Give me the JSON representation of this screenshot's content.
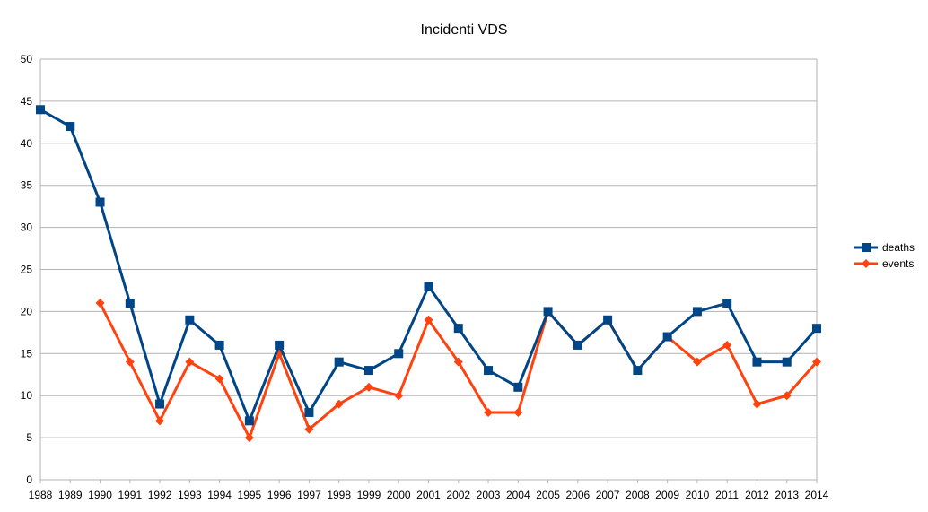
{
  "chart_data": {
    "type": "line",
    "title": "Incidenti VDS",
    "x": [
      "1988",
      "1989",
      "1990",
      "1991",
      "1992",
      "1993",
      "1994",
      "1995",
      "1996",
      "1997",
      "1998",
      "1999",
      "2000",
      "2001",
      "2002",
      "2003",
      "2004",
      "2005",
      "2006",
      "2007",
      "2008",
      "2009",
      "2010",
      "2011",
      "2012",
      "2013",
      "2014"
    ],
    "ylim": [
      0,
      50
    ],
    "yticks": [
      0,
      5,
      10,
      15,
      20,
      25,
      30,
      35,
      40,
      45,
      50
    ],
    "grid": true,
    "legend_position": "right",
    "series": [
      {
        "name": "deaths",
        "color": "#004586",
        "marker": "square",
        "values": [
          44,
          42,
          33,
          21,
          9,
          19,
          16,
          7,
          16,
          8,
          14,
          13,
          15,
          23,
          18,
          13,
          11,
          20,
          16,
          19,
          13,
          17,
          20,
          21,
          14,
          14,
          18
        ]
      },
      {
        "name": "events",
        "color": "#ff420e",
        "marker": "diamond",
        "values": [
          null,
          null,
          21,
          14,
          7,
          14,
          12,
          5,
          15,
          6,
          9,
          11,
          10,
          19,
          14,
          8,
          8,
          20,
          16,
          19,
          13,
          17,
          14,
          16,
          9,
          10,
          14
        ]
      }
    ]
  }
}
